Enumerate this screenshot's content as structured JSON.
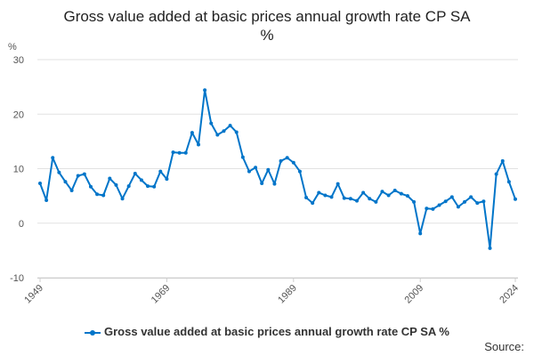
{
  "chart_data": {
    "type": "line",
    "title": "Gross value added at basic prices annual growth rate CP SA %",
    "ylabel": "%",
    "ylim": [
      -10,
      30
    ],
    "yticks": [
      30,
      20,
      10,
      0,
      -10
    ],
    "xticks": [
      "1949",
      "1969",
      "1989",
      "2009",
      "2024"
    ],
    "grid": true,
    "legend": "bottom",
    "color": "#0075c9",
    "x": [
      1949,
      1950,
      1951,
      1952,
      1953,
      1954,
      1955,
      1956,
      1957,
      1958,
      1959,
      1960,
      1961,
      1962,
      1963,
      1964,
      1965,
      1966,
      1967,
      1968,
      1969,
      1970,
      1971,
      1972,
      1973,
      1974,
      1975,
      1976,
      1977,
      1978,
      1979,
      1980,
      1981,
      1982,
      1983,
      1984,
      1985,
      1986,
      1987,
      1988,
      1989,
      1990,
      1991,
      1992,
      1993,
      1994,
      1995,
      1996,
      1997,
      1998,
      1999,
      2000,
      2001,
      2002,
      2003,
      2004,
      2005,
      2006,
      2007,
      2008,
      2009,
      2010,
      2011,
      2012,
      2013,
      2014,
      2015,
      2016,
      2017,
      2018,
      2019,
      2020,
      2021,
      2022,
      2023,
      2024
    ],
    "series": [
      {
        "name": "Gross value added at basic prices annual growth rate CP SA %",
        "values": [
          7.3,
          4.2,
          12.0,
          9.3,
          7.6,
          6.0,
          8.7,
          9.0,
          6.7,
          5.3,
          5.1,
          8.2,
          7.0,
          4.5,
          6.8,
          9.1,
          7.9,
          6.8,
          6.7,
          9.5,
          8.1,
          13.0,
          12.9,
          12.9,
          16.6,
          14.4,
          24.4,
          18.3,
          16.2,
          16.9,
          17.9,
          16.7,
          12.1,
          9.5,
          10.2,
          7.3,
          9.8,
          7.2,
          11.4,
          12.0,
          11.1,
          9.5,
          4.7,
          3.7,
          5.6,
          5.1,
          4.8,
          7.2,
          4.6,
          4.5,
          4.1,
          5.6,
          4.5,
          3.9,
          5.8,
          5.1,
          6.0,
          5.4,
          5.0,
          3.9,
          -1.9,
          2.7,
          2.6,
          3.3,
          4.0,
          4.8,
          3.0,
          3.9,
          4.8,
          3.7,
          4.0,
          -4.6,
          9.0,
          11.4,
          7.6,
          4.4
        ]
      }
    ]
  },
  "title_line1": "Gross value added at basic prices annual growth rate CP SA",
  "title_line2": "%",
  "source_label": "Source:"
}
